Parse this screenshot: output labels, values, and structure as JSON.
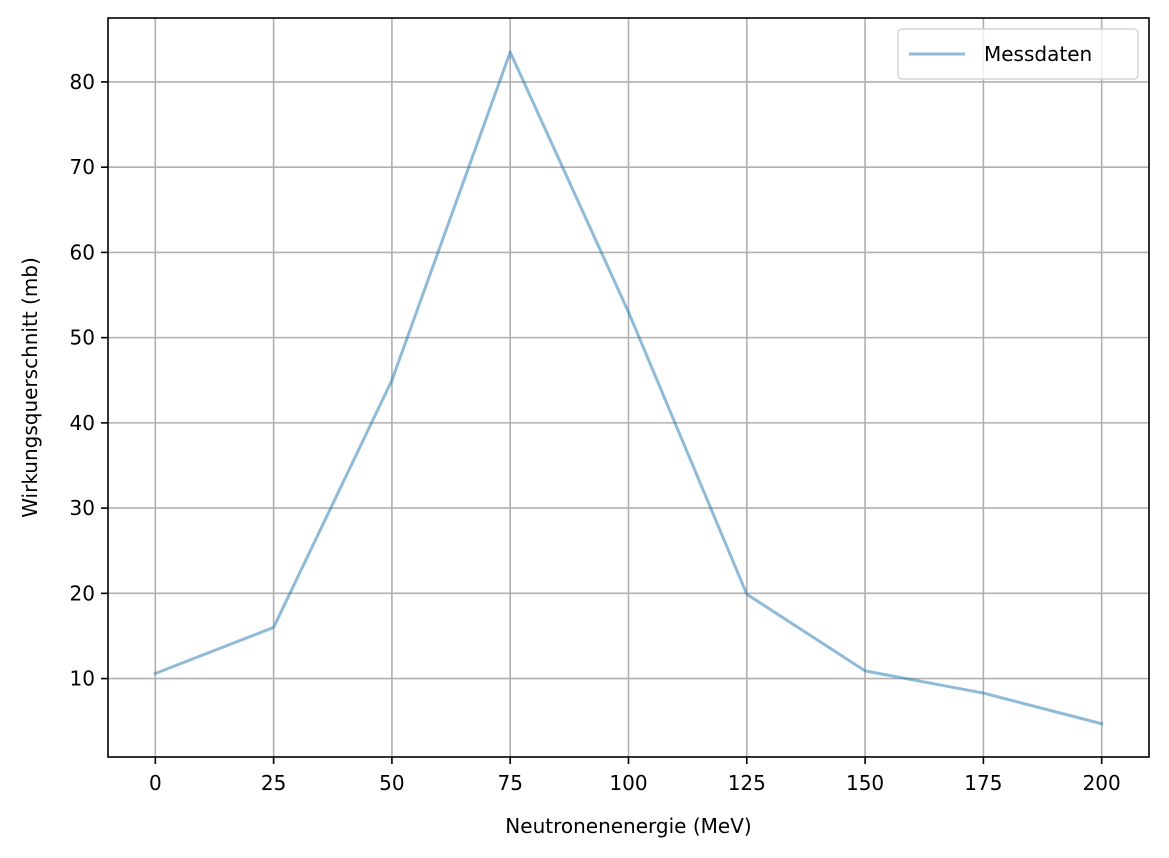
{
  "chart_data": {
    "type": "line",
    "title": "",
    "xlabel": "Neutronenenergie (MeV)",
    "ylabel": "Wirkungsquerschnitt (mb)",
    "x": [
      0,
      25,
      50,
      75,
      100,
      125,
      150,
      175,
      200
    ],
    "series": [
      {
        "name": "Messdaten",
        "color": "#1f77b4",
        "opacity": 0.5,
        "values": [
          10.6,
          16.0,
          45.0,
          83.5,
          53.0,
          19.9,
          10.9,
          8.3,
          4.7
        ]
      }
    ],
    "xlim": [
      -10,
      210
    ],
    "ylim": [
      0.8,
      87.5
    ],
    "xticks": [
      0,
      25,
      50,
      75,
      100,
      125,
      150,
      175,
      200
    ],
    "yticks": [
      10,
      20,
      30,
      40,
      50,
      60,
      70,
      80
    ],
    "grid": true,
    "legend_position": "top-right"
  }
}
